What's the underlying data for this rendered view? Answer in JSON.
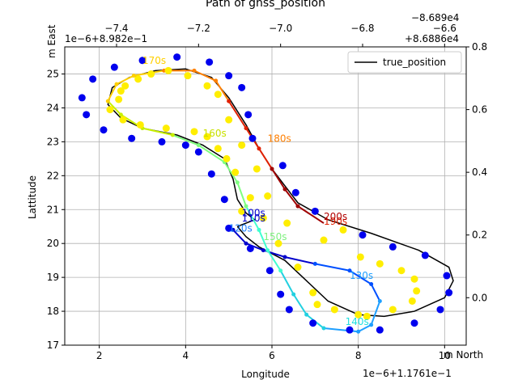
{
  "chart_data": {
    "type": "scatter",
    "title": "Path of gnss_position",
    "xlabel": "Longitude",
    "ylabel": "Lattitude",
    "x_offset_label": "1e−6+1.1761e−1",
    "y_top_label": "m East",
    "y_right_label": "m North",
    "top_offset_label": "1e−6+8.982e−1",
    "top_offset_label2": "−8.689e4",
    "top_offset_label3": "+8.6886e4",
    "xlim": [
      1.2,
      10.5
    ],
    "ylim": [
      17,
      25.8
    ],
    "xticks": [
      2,
      4,
      6,
      8,
      10
    ],
    "yticks": [
      17,
      18,
      19,
      20,
      21,
      22,
      23,
      24,
      25
    ],
    "top_ticks": [
      "−7.4",
      "−7.2",
      "−7.0",
      "−6.8",
      "−6.6"
    ],
    "top_ticks_at_x": [
      2.4,
      4.3,
      6.2,
      8.1,
      10.0
    ],
    "right_ticks": [
      "0.0",
      "0.2",
      "0.4",
      "0.6",
      "0.8"
    ],
    "right_ticks_at_y": [
      18.4,
      20.25,
      22.1,
      23.95,
      25.8
    ],
    "legend": {
      "label": "true_position",
      "placement": "top-right"
    },
    "grid": true,
    "true_position": [
      [
        5.2,
        20.5
      ],
      [
        5.6,
        20.7
      ],
      [
        5.4,
        20.9
      ],
      [
        5.2,
        21.3
      ],
      [
        5.1,
        21.9
      ],
      [
        4.9,
        22.5
      ],
      [
        4.4,
        22.9
      ],
      [
        3.8,
        23.2
      ],
      [
        3.0,
        23.4
      ],
      [
        2.5,
        23.7
      ],
      [
        2.2,
        24.1
      ],
      [
        2.3,
        24.6
      ],
      [
        2.7,
        24.9
      ],
      [
        3.3,
        25.1
      ],
      [
        4.0,
        25.15
      ],
      [
        4.6,
        24.9
      ],
      [
        5.0,
        24.3
      ],
      [
        5.4,
        23.5
      ],
      [
        5.7,
        22.8
      ],
      [
        6.0,
        22.2
      ],
      [
        6.3,
        21.7
      ],
      [
        6.6,
        21.2
      ],
      [
        7.3,
        20.7
      ],
      [
        8.3,
        20.3
      ],
      [
        9.4,
        19.8
      ],
      [
        10.1,
        19.3
      ],
      [
        10.2,
        18.9
      ],
      [
        10.0,
        18.4
      ],
      [
        9.3,
        18.0
      ],
      [
        8.6,
        17.85
      ],
      [
        8.0,
        17.9
      ],
      [
        7.3,
        18.3
      ],
      [
        6.8,
        18.9
      ],
      [
        6.3,
        19.5
      ],
      [
        5.7,
        19.9
      ],
      [
        5.4,
        20.2
      ],
      [
        5.2,
        20.5
      ]
    ],
    "colored_path": [
      [
        5.1,
        20.4
      ],
      [
        5.4,
        20.0
      ],
      [
        5.8,
        19.8
      ],
      [
        6.3,
        19.6
      ],
      [
        7.0,
        19.4
      ],
      [
        7.8,
        19.2
      ],
      [
        8.3,
        18.8
      ],
      [
        8.5,
        18.3
      ],
      [
        8.3,
        17.6
      ],
      [
        8.0,
        17.4
      ],
      [
        7.2,
        17.5
      ],
      [
        6.8,
        17.9
      ],
      [
        6.5,
        18.5
      ],
      [
        6.2,
        19.2
      ],
      [
        5.9,
        19.8
      ],
      [
        5.7,
        20.4
      ],
      [
        5.4,
        21.1
      ],
      [
        5.2,
        21.8
      ],
      [
        4.9,
        22.4
      ],
      [
        4.3,
        22.9
      ],
      [
        3.7,
        23.2
      ],
      [
        3.0,
        23.4
      ],
      [
        2.5,
        23.8
      ],
      [
        2.2,
        24.2
      ],
      [
        2.4,
        24.7
      ],
      [
        2.8,
        24.95
      ],
      [
        3.5,
        25.1
      ],
      [
        4.2,
        25.1
      ],
      [
        4.7,
        24.8
      ],
      [
        5.0,
        24.2
      ],
      [
        5.4,
        23.4
      ],
      [
        5.7,
        22.8
      ],
      [
        6.0,
        22.2
      ],
      [
        6.3,
        21.6
      ],
      [
        6.6,
        21.1
      ],
      [
        7.2,
        20.6
      ]
    ],
    "labels_time": [
      "100s",
      "110s",
      "120s",
      "130s",
      "140s",
      "150s",
      "160s",
      "170s",
      "180s",
      "190s",
      "200s"
    ],
    "labels_at": [
      [
        5.3,
        20.8
      ],
      [
        5.3,
        20.65
      ],
      [
        5.0,
        20.35
      ],
      [
        7.8,
        18.95
      ],
      [
        7.7,
        17.6
      ],
      [
        5.8,
        20.1
      ],
      [
        4.4,
        23.15
      ],
      [
        3.0,
        25.3
      ],
      [
        5.9,
        23.0
      ],
      [
        7.2,
        20.55
      ],
      [
        7.2,
        20.7
      ]
    ],
    "labels_color": [
      "#0000cc",
      "#0000cc",
      "#1e7fff",
      "#1e9fff",
      "#22e0e0",
      "#7ff07f",
      "#c8e000",
      "#ffd000",
      "#ff7f00",
      "#e02000",
      "#b00000"
    ],
    "blue_points": [
      [
        1.6,
        24.3
      ],
      [
        1.7,
        23.8
      ],
      [
        1.85,
        24.85
      ],
      [
        2.1,
        23.35
      ],
      [
        2.35,
        25.2
      ],
      [
        2.75,
        23.1
      ],
      [
        3.0,
        25.4
      ],
      [
        3.45,
        23.0
      ],
      [
        3.8,
        25.5
      ],
      [
        4.0,
        22.9
      ],
      [
        4.3,
        22.7
      ],
      [
        4.55,
        25.35
      ],
      [
        4.6,
        22.05
      ],
      [
        5.0,
        24.95
      ],
      [
        4.9,
        21.3
      ],
      [
        5.3,
        24.6
      ],
      [
        5.45,
        23.8
      ],
      [
        5.55,
        23.1
      ],
      [
        6.25,
        22.3
      ],
      [
        6.55,
        21.5
      ],
      [
        5.95,
        19.2
      ],
      [
        6.2,
        18.5
      ],
      [
        6.4,
        18.05
      ],
      [
        7.0,
        20.95
      ],
      [
        6.95,
        17.65
      ],
      [
        7.8,
        17.45
      ],
      [
        8.1,
        20.25
      ],
      [
        8.5,
        17.45
      ],
      [
        8.8,
        19.9
      ],
      [
        9.3,
        17.65
      ],
      [
        9.55,
        19.65
      ],
      [
        9.9,
        18.05
      ],
      [
        10.05,
        19.05
      ],
      [
        10.1,
        18.55
      ],
      [
        5.0,
        20.45
      ],
      [
        5.5,
        19.85
      ]
    ],
    "yellow_points": [
      [
        2.25,
        23.95
      ],
      [
        2.45,
        24.25
      ],
      [
        2.5,
        24.5
      ],
      [
        2.6,
        24.65
      ],
      [
        2.9,
        24.85
      ],
      [
        3.2,
        25.0
      ],
      [
        3.6,
        25.1
      ],
      [
        4.05,
        24.95
      ],
      [
        4.5,
        24.65
      ],
      [
        4.75,
        24.4
      ],
      [
        5.0,
        23.65
      ],
      [
        5.3,
        22.9
      ],
      [
        5.65,
        22.2
      ],
      [
        5.9,
        21.4
      ],
      [
        5.5,
        21.35
      ],
      [
        5.15,
        22.1
      ],
      [
        4.95,
        22.5
      ],
      [
        4.75,
        22.8
      ],
      [
        4.5,
        23.15
      ],
      [
        4.2,
        23.3
      ],
      [
        3.55,
        23.4
      ],
      [
        2.95,
        23.5
      ],
      [
        2.55,
        23.65
      ],
      [
        5.3,
        20.95
      ],
      [
        6.15,
        20.0
      ],
      [
        6.35,
        20.6
      ],
      [
        6.6,
        19.3
      ],
      [
        6.95,
        18.55
      ],
      [
        7.05,
        18.2
      ],
      [
        7.45,
        18.05
      ],
      [
        7.65,
        20.4
      ],
      [
        8.0,
        17.9
      ],
      [
        8.05,
        19.6
      ],
      [
        8.2,
        17.85
      ],
      [
        8.5,
        19.4
      ],
      [
        8.8,
        18.05
      ],
      [
        9.0,
        19.2
      ],
      [
        9.25,
        18.3
      ],
      [
        9.35,
        18.6
      ],
      [
        9.3,
        18.95
      ],
      [
        7.2,
        20.1
      ],
      [
        5.8,
        20.75
      ]
    ]
  }
}
